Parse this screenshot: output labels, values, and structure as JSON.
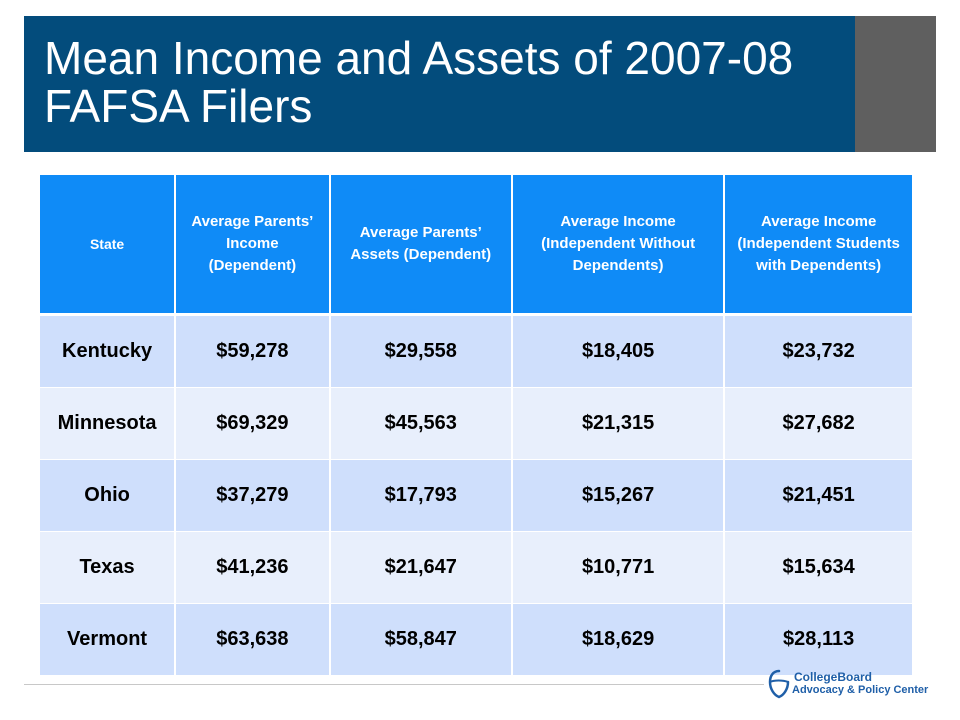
{
  "slide": {
    "title": "Mean Income and Assets of 2007-08 FAFSA Filers"
  },
  "table": {
    "headers": [
      "State",
      "Average Parents’ Income (Dependent)",
      "Average Parents’ Assets (Dependent)",
      "Average Income (Independent Without Dependents)",
      "Average Income (Independent Students with Dependents)"
    ],
    "rows": [
      [
        "Kentucky",
        "$59,278",
        "$29,558",
        "$18,405",
        "$23,732"
      ],
      [
        "Minnesota",
        "$69,329",
        "$45,563",
        "$21,315",
        "$27,682"
      ],
      [
        "Ohio",
        "$37,279",
        "$17,793",
        "$15,267",
        "$21,451"
      ],
      [
        "Texas",
        "$41,236",
        "$21,647",
        "$10,771",
        "$15,634"
      ],
      [
        "Vermont",
        "$63,638",
        "$58,847",
        "$18,629",
        "$28,113"
      ]
    ]
  },
  "logo": {
    "line1": "CollegeBoard",
    "line2": "Advocacy & Policy Center"
  },
  "colors": {
    "title_bar": "#034c7c",
    "title_accent": "#5f5f5f",
    "header_fill": "#0f8bf7",
    "row_odd": "#cfdffc",
    "row_even": "#e8effc"
  }
}
